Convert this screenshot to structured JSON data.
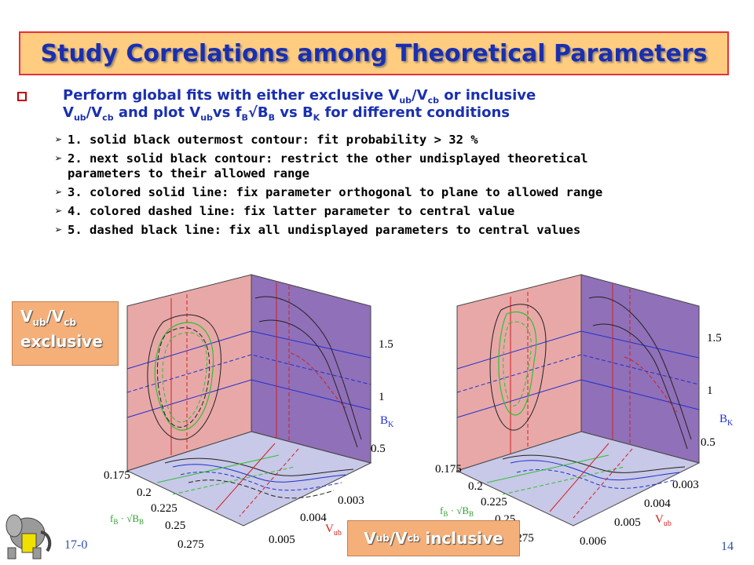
{
  "slide": {
    "title": "Study Correlations among Theoretical Parameters",
    "main_bullet": {
      "line1_a": "Perform global fits with either exclusive V",
      "sub_ub": "ub",
      "slash_v": "/V",
      "sub_cb": "cb",
      "line1_b": " or inclusive",
      "line2_a": "V",
      "line2_b": " and plot V",
      "line2_c": "vs f",
      "sub_B": "B",
      "sqrtB": "√B",
      "line2_d": " vs B",
      "sub_K": "K",
      "line2_e": " for different conditions"
    },
    "sub_items": [
      "1. solid black outermost contour: fit probability > 32 %",
      "2. next solid black contour: restrict the other undisplayed theoretical",
      "parameters to their allowed range",
      "3. colored solid line: fix parameter orthogonal to plane to allowed range",
      "4. colored dashed line: fix latter parameter to central value",
      "5. dashed black line: fix all undisplayed parameters to central values"
    ],
    "labels": {
      "exclusive_v": "V",
      "exclusive_sub1": "ub",
      "exclusive_slash": "/V",
      "exclusive_sub2": "cb",
      "exclusive_word": "exclusive",
      "inclusive_v": "V",
      "inclusive_sub1": "ub",
      "inclusive_slash": "/V",
      "inclusive_sub2": "cb",
      "inclusive_word": " inclusive"
    },
    "footer": {
      "date": "17-0",
      "page": "14"
    },
    "plot_left": {
      "bk_ticks": [
        "1.5",
        "1",
        "0.5"
      ],
      "bk_label": "B",
      "bk_sub": "K",
      "fb_ticks": [
        "0.175",
        "0.2",
        "0.225",
        "0.25",
        "0.275"
      ],
      "fb_label": "f",
      "vub_ticks": [
        "0.003",
        "0.004",
        "0.005"
      ],
      "vub_label": "V"
    },
    "plot_right": {
      "bk_ticks": [
        "1.5",
        "1",
        "0.5"
      ],
      "bk_label": "B",
      "bk_sub": "K",
      "fb_ticks": [
        "0.175",
        "0.2",
        "0.225",
        "0.25",
        "0.275"
      ],
      "fb_label": "f",
      "vub_ticks": [
        "0.003",
        "0.004",
        "0.005",
        "0.006"
      ],
      "vub_label": "V",
      "vub_sub": "ub"
    },
    "colors": {
      "title_text": "#1a2fb0",
      "title_bg": "#ffcc80",
      "title_border": "#e8303a",
      "left_wall": "#e8a8a8",
      "right_wall": "#9070b8",
      "floor": "#c8c8e8"
    }
  }
}
